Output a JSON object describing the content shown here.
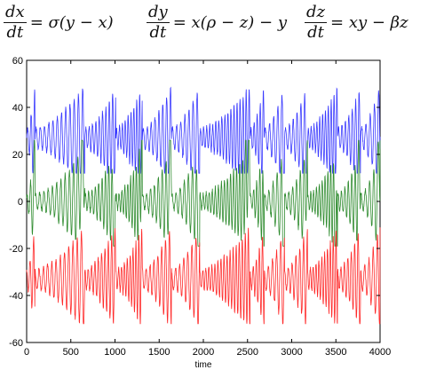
{
  "equations": {
    "x": {
      "num": "dx",
      "den": "dt",
      "rhs": "= σ(y − x)"
    },
    "y": {
      "num": "dy",
      "den": "dt",
      "rhs": "= x(ρ − z) − y"
    },
    "z": {
      "num": "dz",
      "den": "dt",
      "rhs": "= xy − βz"
    }
  },
  "chart_data": {
    "type": "line",
    "xlabel": "time",
    "ylabel": "",
    "title": "",
    "xlim": [
      0,
      4000
    ],
    "ylim": [
      -60,
      60
    ],
    "xticks": [
      "0",
      "500",
      "1000",
      "1500",
      "2000",
      "2500",
      "3000",
      "3500",
      "4000"
    ],
    "yticks": [
      "60",
      "40",
      "20",
      "0",
      "-20",
      "-40",
      "-60"
    ],
    "grid": false,
    "legend": "none",
    "series": [
      {
        "color": "#3a3aff",
        "center": 27,
        "amplitude_range": [
          4,
          22
        ],
        "peaks_at": [
          25,
          40,
          48
        ],
        "note_range": [
          12,
          49
        ]
      },
      {
        "color": "#2e8b2e",
        "center": 0,
        "amplitude_range": [
          3,
          22
        ],
        "note_range": [
          -19,
          26
        ]
      },
      {
        "color": "#ff2a2a",
        "center": -33,
        "amplitude_range": [
          4,
          22
        ],
        "note_range": [
          -52,
          -11
        ]
      }
    ]
  }
}
